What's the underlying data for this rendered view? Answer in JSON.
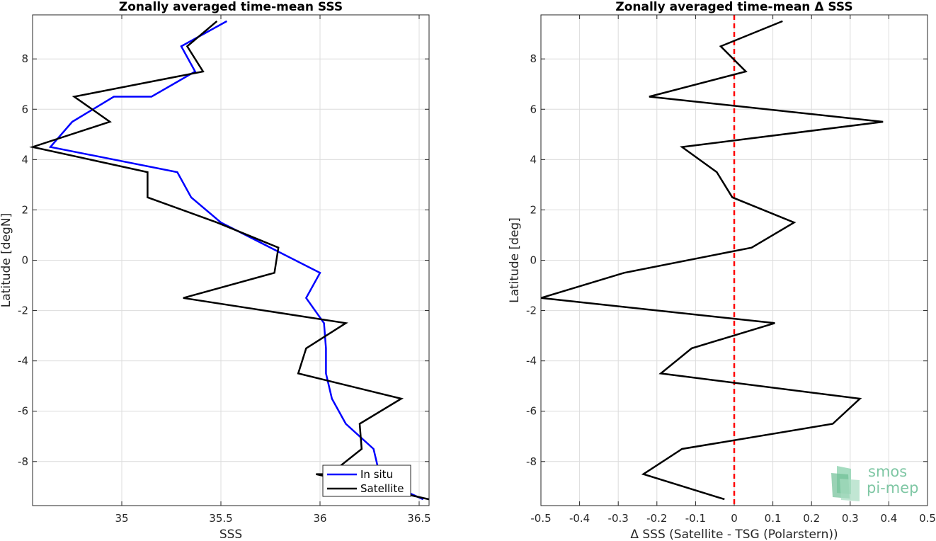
{
  "chart_data": [
    {
      "type": "line",
      "title": "Zonally averaged time-mean SSS",
      "xlabel": "SSS",
      "ylabel": "Latitude [degN]",
      "xlim": [
        34.55,
        36.55
      ],
      "ylim": [
        -9.75,
        9.75
      ],
      "xticks": [
        "35",
        "35.5",
        "36",
        "36.5"
      ],
      "yticks": [
        "-8",
        "-6",
        "-4",
        "-2",
        "0",
        "2",
        "4",
        "6",
        "8"
      ],
      "grid": true,
      "legend_position": "bottom-right",
      "series": [
        {
          "name": "In situ",
          "color": "#0000ff",
          "x": [
            35.53,
            35.3,
            35.37,
            35.15,
            34.96,
            34.75,
            34.64,
            35.28,
            35.35,
            35.5,
            35.75,
            36.0,
            35.93,
            36.02,
            36.03,
            36.03,
            36.06,
            36.13,
            36.27,
            36.3,
            36.38,
            36.52
          ],
          "y": [
            9.5,
            8.5,
            7.5,
            6.5,
            6.5,
            5.5,
            4.5,
            3.5,
            2.5,
            1.5,
            0.5,
            -0.5,
            -1.5,
            -2.5,
            -3.5,
            -4.5,
            -5.5,
            -6.5,
            -7.5,
            -8.5,
            -9.0,
            -9.5
          ]
        },
        {
          "name": "Satellite",
          "color": "#000000",
          "x": [
            35.48,
            35.33,
            35.41,
            34.76,
            34.94,
            34.55,
            35.13,
            35.13,
            35.48,
            35.79,
            35.77,
            35.31,
            36.13,
            35.93,
            35.89,
            36.41,
            36.2,
            36.21,
            36.05,
            35.98,
            36.55
          ],
          "y": [
            9.5,
            8.5,
            7.5,
            6.5,
            5.5,
            4.5,
            3.5,
            2.5,
            1.5,
            0.5,
            -0.5,
            -1.5,
            -2.5,
            -3.5,
            -4.5,
            -5.5,
            -6.5,
            -7.5,
            -8.5,
            -8.5,
            -9.5
          ]
        }
      ]
    },
    {
      "type": "line",
      "title": "Zonally averaged time-mean Δ SSS",
      "xlabel": "Δ SSS (Satellite - TSG (Polarstern))",
      "ylabel": "Latitude [deg]",
      "xlim": [
        -0.5,
        0.5
      ],
      "ylim": [
        -9.75,
        9.75
      ],
      "xticks": [
        "-0.5",
        "-0.4",
        "-0.3",
        "-0.2",
        "-0.1",
        "0",
        "0.1",
        "0.2",
        "0.3",
        "0.4",
        "0.5"
      ],
      "yticks": [
        "-8",
        "-6",
        "-4",
        "-2",
        "0",
        "2",
        "4",
        "6",
        "8"
      ],
      "grid": true,
      "zero_line": {
        "x": 0,
        "color": "#ff0000",
        "style": "dashed"
      },
      "series": [
        {
          "color": "#000000",
          "x": [
            0.125,
            -0.035,
            0.03,
            -0.22,
            0.385,
            -0.135,
            -0.045,
            -0.005,
            0.155,
            0.045,
            -0.285,
            -0.5,
            0.105,
            -0.11,
            -0.19,
            0.325,
            0.255,
            -0.135,
            -0.235,
            -0.025
          ],
          "y": [
            9.5,
            8.5,
            7.5,
            6.5,
            5.5,
            4.5,
            3.5,
            2.5,
            1.5,
            0.5,
            -0.5,
            -1.5,
            -2.5,
            -3.5,
            -4.5,
            -5.5,
            -6.5,
            -7.5,
            -8.5,
            -9.5
          ]
        }
      ]
    }
  ],
  "logo": {
    "line1": "smos",
    "line2": "pi-mep"
  }
}
